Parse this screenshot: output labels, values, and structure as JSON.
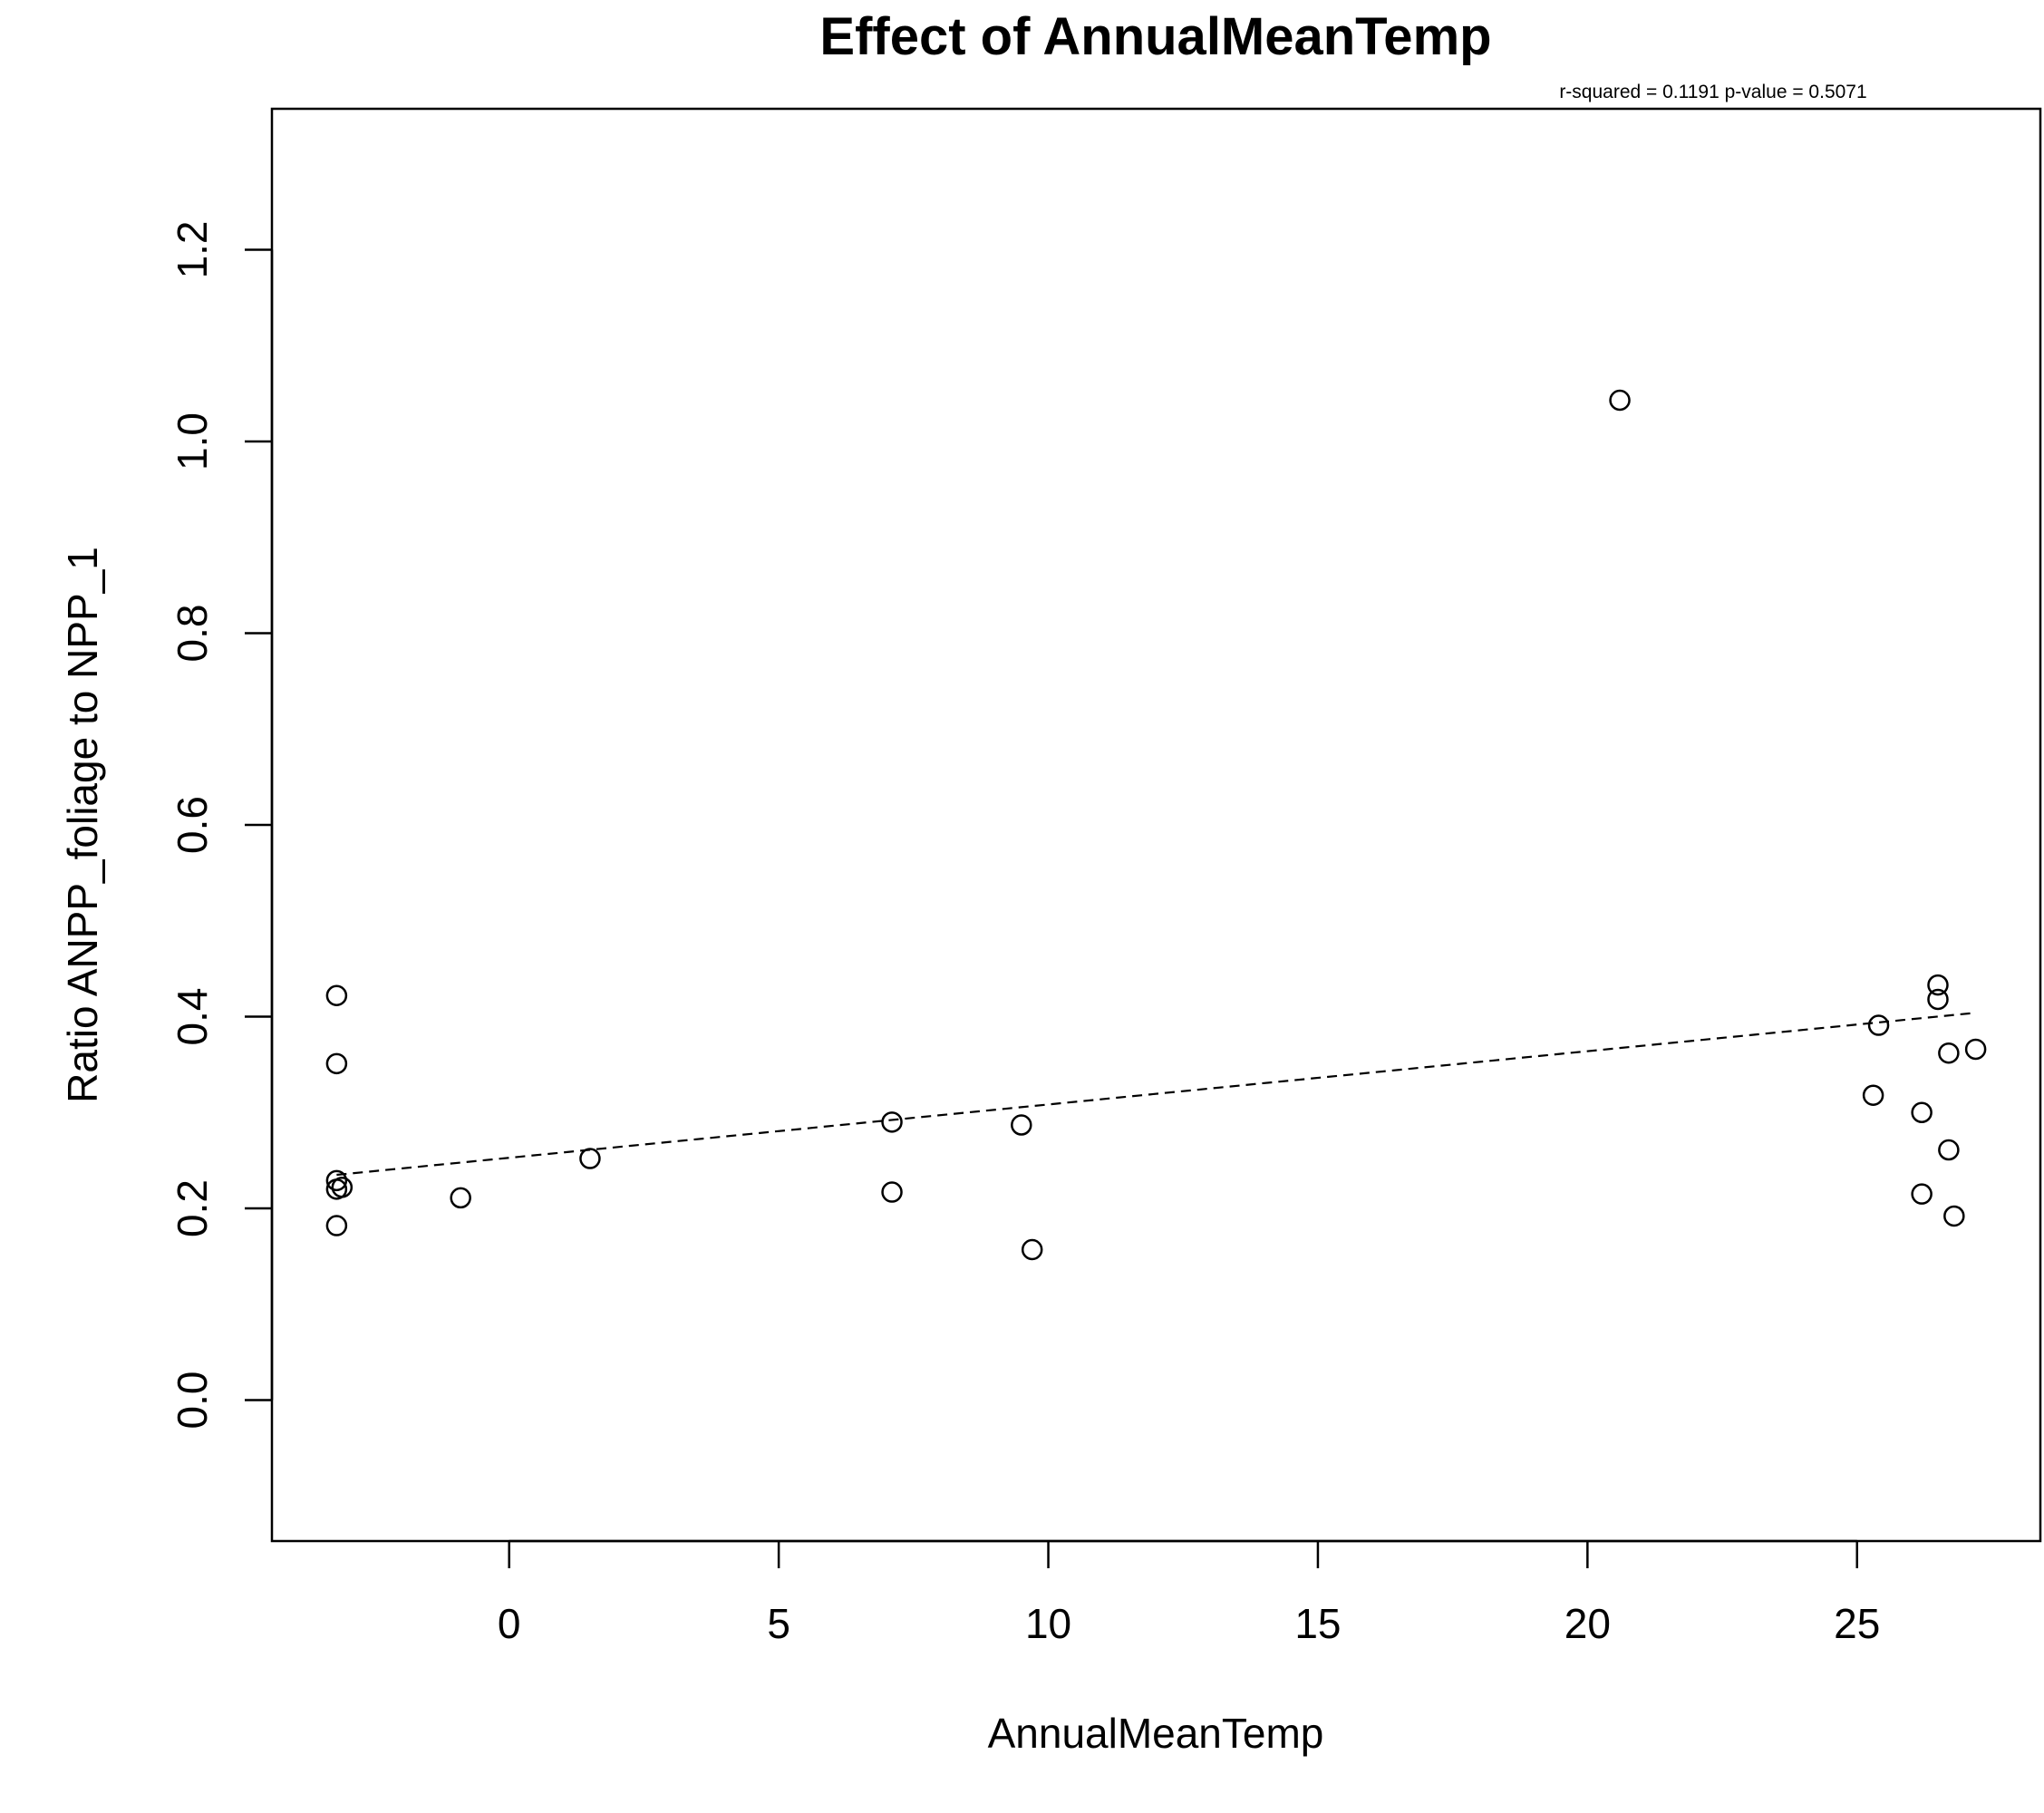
{
  "chart_data": {
    "type": "scatter",
    "title": "Effect of AnnualMeanTemp",
    "stats_text": "r-squared =  0.1191 p-value =  0.5071",
    "xlabel": "AnnualMeanTemp",
    "ylabel": "Ratio ANPP_foliage to NPP_1",
    "xlim": [
      -4.4,
      28.4
    ],
    "ylim": [
      -0.147,
      1.347
    ],
    "x_ticks": [
      0,
      5,
      10,
      15,
      20,
      25
    ],
    "x_tick_labels": [
      "0",
      "5",
      "10",
      "15",
      "20",
      "25"
    ],
    "y_ticks": [
      0.0,
      0.2,
      0.4,
      0.6,
      0.8,
      1.0,
      1.2
    ],
    "y_tick_labels": [
      "0.0",
      "0.2",
      "0.4",
      "0.6",
      "0.8",
      "1.0",
      "1.2"
    ],
    "grid": false,
    "marker": "open-circle",
    "points": [
      {
        "x": -3.2,
        "y": 0.422
      },
      {
        "x": -3.2,
        "y": 0.351
      },
      {
        "x": -3.2,
        "y": 0.229
      },
      {
        "x": -3.2,
        "y": 0.22
      },
      {
        "x": -3.1,
        "y": 0.222
      },
      {
        "x": -3.2,
        "y": 0.182
      },
      {
        "x": -0.9,
        "y": 0.211
      },
      {
        "x": 1.5,
        "y": 0.252
      },
      {
        "x": 7.1,
        "y": 0.29
      },
      {
        "x": 7.1,
        "y": 0.217
      },
      {
        "x": 9.5,
        "y": 0.287
      },
      {
        "x": 9.7,
        "y": 0.157
      },
      {
        "x": 20.6,
        "y": 1.043
      },
      {
        "x": 25.3,
        "y": 0.318
      },
      {
        "x": 25.4,
        "y": 0.391
      },
      {
        "x": 26.2,
        "y": 0.3
      },
      {
        "x": 26.2,
        "y": 0.215
      },
      {
        "x": 26.5,
        "y": 0.433
      },
      {
        "x": 26.5,
        "y": 0.418
      },
      {
        "x": 26.7,
        "y": 0.362
      },
      {
        "x": 26.7,
        "y": 0.261
      },
      {
        "x": 26.8,
        "y": 0.192
      },
      {
        "x": 27.2,
        "y": 0.366
      }
    ],
    "trend_line": {
      "style": "dashed",
      "x": [
        -3.2,
        27.2
      ],
      "y": [
        0.235,
        0.404
      ]
    }
  }
}
